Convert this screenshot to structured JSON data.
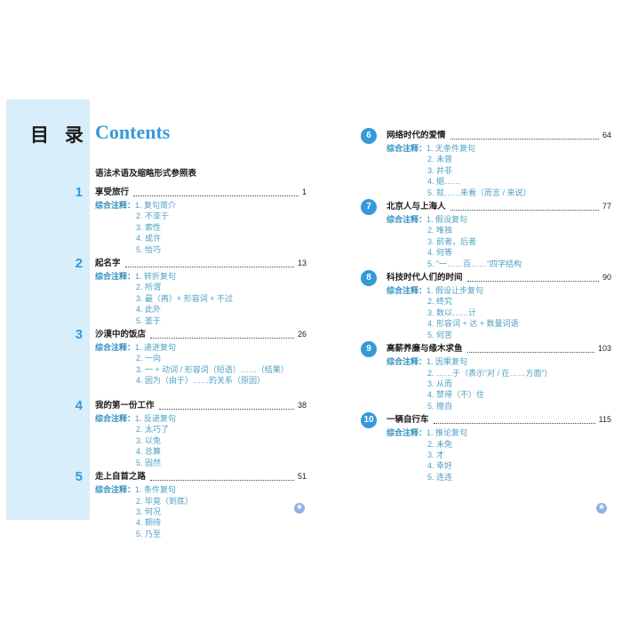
{
  "header": {
    "title_cn": "目 录",
    "title_en": "Contents",
    "reference_line": "语法术语及缩略形式参照表"
  },
  "notes_label": "综合注释：",
  "chapters_left": [
    {
      "num": "1",
      "title": "享受旅行",
      "page": "1",
      "notes": [
        "1. 复句简介",
        "2. 不亚于",
        "3. 索性",
        "4. 或许",
        "5. 恰巧"
      ]
    },
    {
      "num": "2",
      "title": "起名字",
      "page": "13",
      "notes": [
        "1. 转折复句",
        "2. 所谓",
        "3. 最（再）+ 形容词 + 不过",
        "4. 此外",
        "5. 鉴于"
      ]
    },
    {
      "num": "3",
      "title": "沙漠中的饭店",
      "page": "26",
      "notes": [
        "1. 递进复句",
        "2. 一向",
        "3. 一 + 动词 / 形容词（短语）……（结果）",
        "4. 因为（由于）……的关系（原因）"
      ]
    },
    {
      "num": "4",
      "title": "我的第一份工作",
      "page": "38",
      "notes": [
        "1. 反递复句",
        "2. 太巧了",
        "3. 以免",
        "4. 总算",
        "5. 固然"
      ]
    },
    {
      "num": "5",
      "title": "走上自首之路",
      "page": "51",
      "notes": [
        "1. 条件复句",
        "2. 毕竟（到底）",
        "3. 何况",
        "4. 期待",
        "5. 乃至"
      ]
    }
  ],
  "chapters_right": [
    {
      "num": "6",
      "title": "网络时代的爱情",
      "page": "64",
      "notes": [
        "1. 无条件复句",
        "2. 未曾",
        "3. 并非",
        "4. 据……",
        "5. 就……来看（而言 / 来说）"
      ]
    },
    {
      "num": "7",
      "title": "北京人与上海人",
      "page": "77",
      "notes": [
        "1. 假设复句",
        "2. 唯独",
        "3. 前者，后者",
        "4. 何等",
        "5. “一……百……”四字结构"
      ]
    },
    {
      "num": "8",
      "title": "科技时代人们的时间",
      "page": "90",
      "notes": [
        "1. 假设让步复句",
        "2. 终究",
        "3. 数以……计",
        "4. 形容词 + 达 + 数量词语",
        "5. 何苦"
      ]
    },
    {
      "num": "9",
      "title": "高薪养廉与缘木求鱼",
      "page": "103",
      "notes": [
        "1. 因果复句",
        "2. ……于（表示“对 / 在……方面”）",
        "3. 从而",
        "4. 禁得（不）住",
        "5. 擅自"
      ]
    },
    {
      "num": "10",
      "title": "一辆自行车",
      "page": "115",
      "notes": [
        "1. 推论复句",
        "2. 未免",
        "3. 才",
        "4. 幸好",
        "5. 连连"
      ]
    }
  ],
  "footer": {
    "marker_glyph": "✽"
  },
  "colors": {
    "accent_blue": "#3599da",
    "panel_blue": "#d8eefa",
    "notes_teal": "#4d9fc4",
    "label_teal": "#2f8fc0",
    "marker_blue": "#8fb0e4",
    "text_dark": "#1f1f1f"
  }
}
